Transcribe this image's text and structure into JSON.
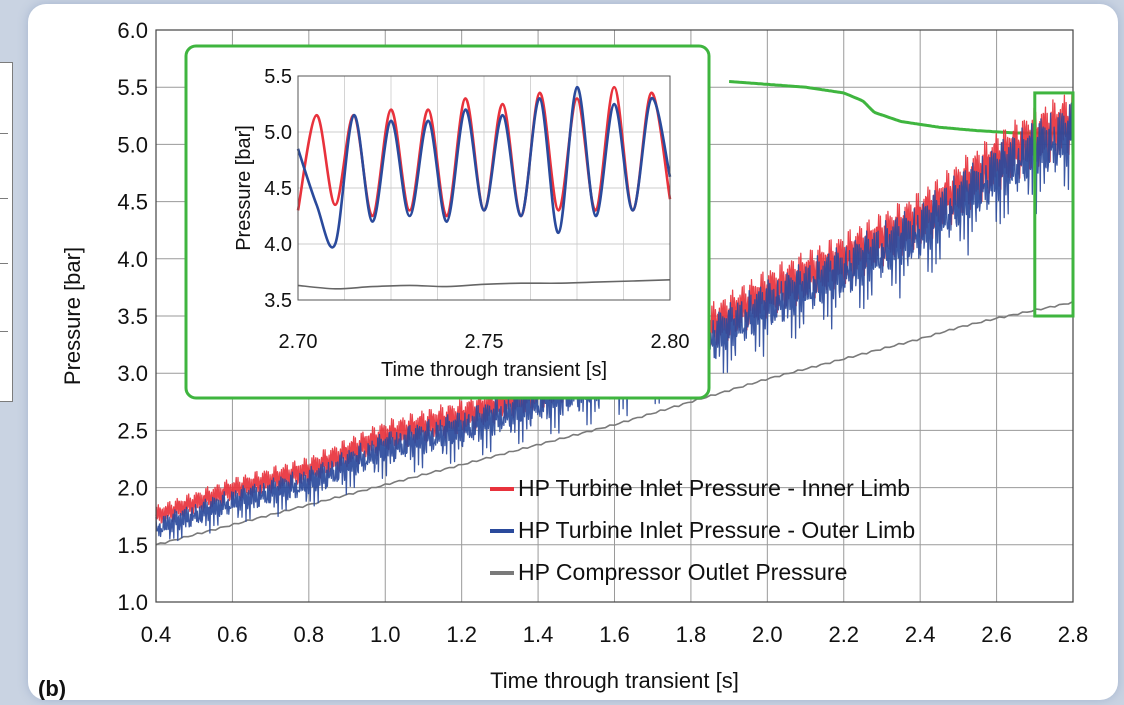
{
  "panel_label": "(b)",
  "chart_data": [
    {
      "type": "line",
      "xlabel": "Time through transient [s]",
      "ylabel": "Pressure [bar]",
      "xlim": [
        0.4,
        2.8
      ],
      "ylim": [
        1.0,
        6.0
      ],
      "xticks": [
        "0.4",
        "0.6",
        "0.8",
        "1.0",
        "1.2",
        "1.4",
        "1.6",
        "1.8",
        "2.0",
        "2.2",
        "2.4",
        "2.6",
        "2.8"
      ],
      "yticks": [
        "1.0",
        "1.5",
        "2.0",
        "2.5",
        "3.0",
        "3.5",
        "4.0",
        "4.5",
        "5.0",
        "5.5",
        "6.0"
      ],
      "grid": true,
      "legend": "bottom-right",
      "series": [
        {
          "name": "HP Turbine Inlet Pressure - Inner Limb",
          "color": "#e8323c",
          "x": [
            0.4,
            0.6,
            0.8,
            1.0,
            1.2,
            1.4,
            1.6,
            1.8,
            2.0,
            2.2,
            2.4,
            2.6,
            2.7,
            2.8
          ],
          "y": [
            1.75,
            1.98,
            2.15,
            2.45,
            2.62,
            2.85,
            3.05,
            3.3,
            3.7,
            4.0,
            4.35,
            4.85,
            5.05,
            5.2
          ]
        },
        {
          "name": "HP Turbine Inlet Pressure - Outer Limb",
          "color": "#2a4a9c",
          "x": [
            0.4,
            0.6,
            0.8,
            1.0,
            1.2,
            1.4,
            1.6,
            1.8,
            2.0,
            2.2,
            2.4,
            2.6,
            2.7,
            2.8
          ],
          "y": [
            1.65,
            1.88,
            2.05,
            2.35,
            2.52,
            2.75,
            2.95,
            3.2,
            3.6,
            3.9,
            4.25,
            4.75,
            4.95,
            5.1
          ]
        },
        {
          "name": "HP Compressor Outlet Pressure",
          "color": "#7a7a7a",
          "x": [
            0.4,
            0.8,
            1.2,
            1.6,
            2.0,
            2.4,
            2.5,
            2.6,
            2.7,
            2.8
          ],
          "y": [
            1.5,
            1.85,
            2.2,
            2.55,
            2.95,
            3.3,
            3.4,
            3.48,
            3.55,
            3.62
          ]
        },
        {
          "color": "#3fb53f",
          "x": [
            1.9,
            2.1,
            2.2,
            2.25,
            2.28,
            2.35,
            2.45,
            2.55,
            2.65,
            2.75,
            2.8
          ],
          "y": [
            5.55,
            5.5,
            5.45,
            5.38,
            5.28,
            5.2,
            5.15,
            5.12,
            5.1,
            5.1,
            5.1
          ]
        }
      ]
    },
    {
      "type": "line",
      "xlabel": "Time through transient [s]",
      "ylabel": "Pressure [bar]",
      "xlim": [
        2.7,
        2.8
      ],
      "ylim": [
        3.5,
        5.5
      ],
      "xticks": [
        "2.70",
        "2.75",
        "2.80"
      ],
      "yticks": [
        "3.5",
        "4.0",
        "4.5",
        "5.0",
        "5.5"
      ],
      "grid": true,
      "series": [
        {
          "color": "#e8323c",
          "x": [
            2.7,
            2.705,
            2.71,
            2.715,
            2.72,
            2.725,
            2.73,
            2.735,
            2.74,
            2.745,
            2.75,
            2.755,
            2.76,
            2.765,
            2.77,
            2.775,
            2.78,
            2.785,
            2.79,
            2.795,
            2.8
          ],
          "y": [
            4.3,
            5.15,
            4.35,
            5.15,
            4.25,
            5.2,
            4.3,
            5.2,
            4.25,
            5.3,
            4.3,
            5.25,
            4.25,
            5.35,
            4.3,
            5.3,
            4.3,
            5.4,
            4.3,
            5.35,
            4.4
          ]
        },
        {
          "color": "#2a4a9c",
          "x": [
            2.7,
            2.705,
            2.71,
            2.715,
            2.72,
            2.725,
            2.73,
            2.735,
            2.74,
            2.745,
            2.75,
            2.755,
            2.76,
            2.765,
            2.77,
            2.775,
            2.78,
            2.785,
            2.79,
            2.795,
            2.8
          ],
          "y": [
            4.85,
            4.35,
            4.0,
            5.15,
            4.2,
            5.1,
            4.25,
            5.1,
            4.2,
            5.2,
            4.3,
            5.15,
            4.25,
            5.3,
            4.1,
            5.4,
            4.25,
            5.25,
            4.3,
            5.3,
            4.6
          ]
        },
        {
          "color": "#666666",
          "x": [
            2.7,
            2.71,
            2.72,
            2.73,
            2.74,
            2.75,
            2.76,
            2.77,
            2.78,
            2.79,
            2.8
          ],
          "y": [
            3.63,
            3.6,
            3.62,
            3.63,
            3.62,
            3.64,
            3.65,
            3.65,
            3.66,
            3.67,
            3.68
          ]
        }
      ]
    }
  ]
}
